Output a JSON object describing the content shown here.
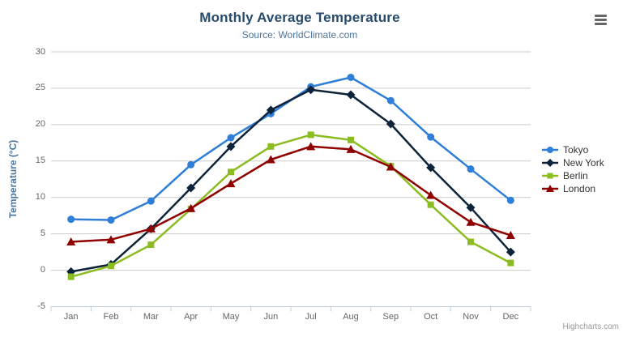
{
  "credits": "Highcharts.com",
  "chart_data": {
    "type": "line",
    "title": "Monthly Average Temperature",
    "subtitle": "Source: WorldClimate.com",
    "xlabel": "",
    "ylabel": "Temperature (°C)",
    "ylim": [
      -5,
      30
    ],
    "ytick_step": 5,
    "grid": "horizontal",
    "legend_position": "right",
    "categories": [
      "Jan",
      "Feb",
      "Mar",
      "Apr",
      "May",
      "Jun",
      "Jul",
      "Aug",
      "Sep",
      "Oct",
      "Nov",
      "Dec"
    ],
    "series": [
      {
        "name": "Tokyo",
        "color": "#2f7ed8",
        "marker": "circle",
        "values": [
          7.0,
          6.9,
          9.5,
          14.5,
          18.2,
          21.5,
          25.2,
          26.5,
          23.3,
          18.3,
          13.9,
          9.6
        ]
      },
      {
        "name": "New York",
        "color": "#0d233a",
        "marker": "diamond",
        "values": [
          -0.2,
          0.8,
          5.7,
          11.3,
          17.0,
          22.0,
          24.8,
          24.1,
          20.1,
          14.1,
          8.6,
          2.5
        ]
      },
      {
        "name": "Berlin",
        "color": "#8bbc21",
        "marker": "square",
        "values": [
          -0.9,
          0.6,
          3.5,
          8.4,
          13.5,
          17.0,
          18.6,
          17.9,
          14.3,
          9.0,
          3.9,
          1.0
        ]
      },
      {
        "name": "London",
        "color": "#910000",
        "marker": "triangle",
        "values": [
          3.9,
          4.2,
          5.7,
          8.5,
          11.9,
          15.2,
          17.0,
          16.6,
          14.2,
          10.3,
          6.6,
          4.8
        ]
      }
    ],
    "styles": {
      "grid_color": "#cccccc",
      "axis_line_color": "#c0d0e0",
      "tick_label_color": "#666666",
      "legend_text_color": "#333333"
    }
  }
}
